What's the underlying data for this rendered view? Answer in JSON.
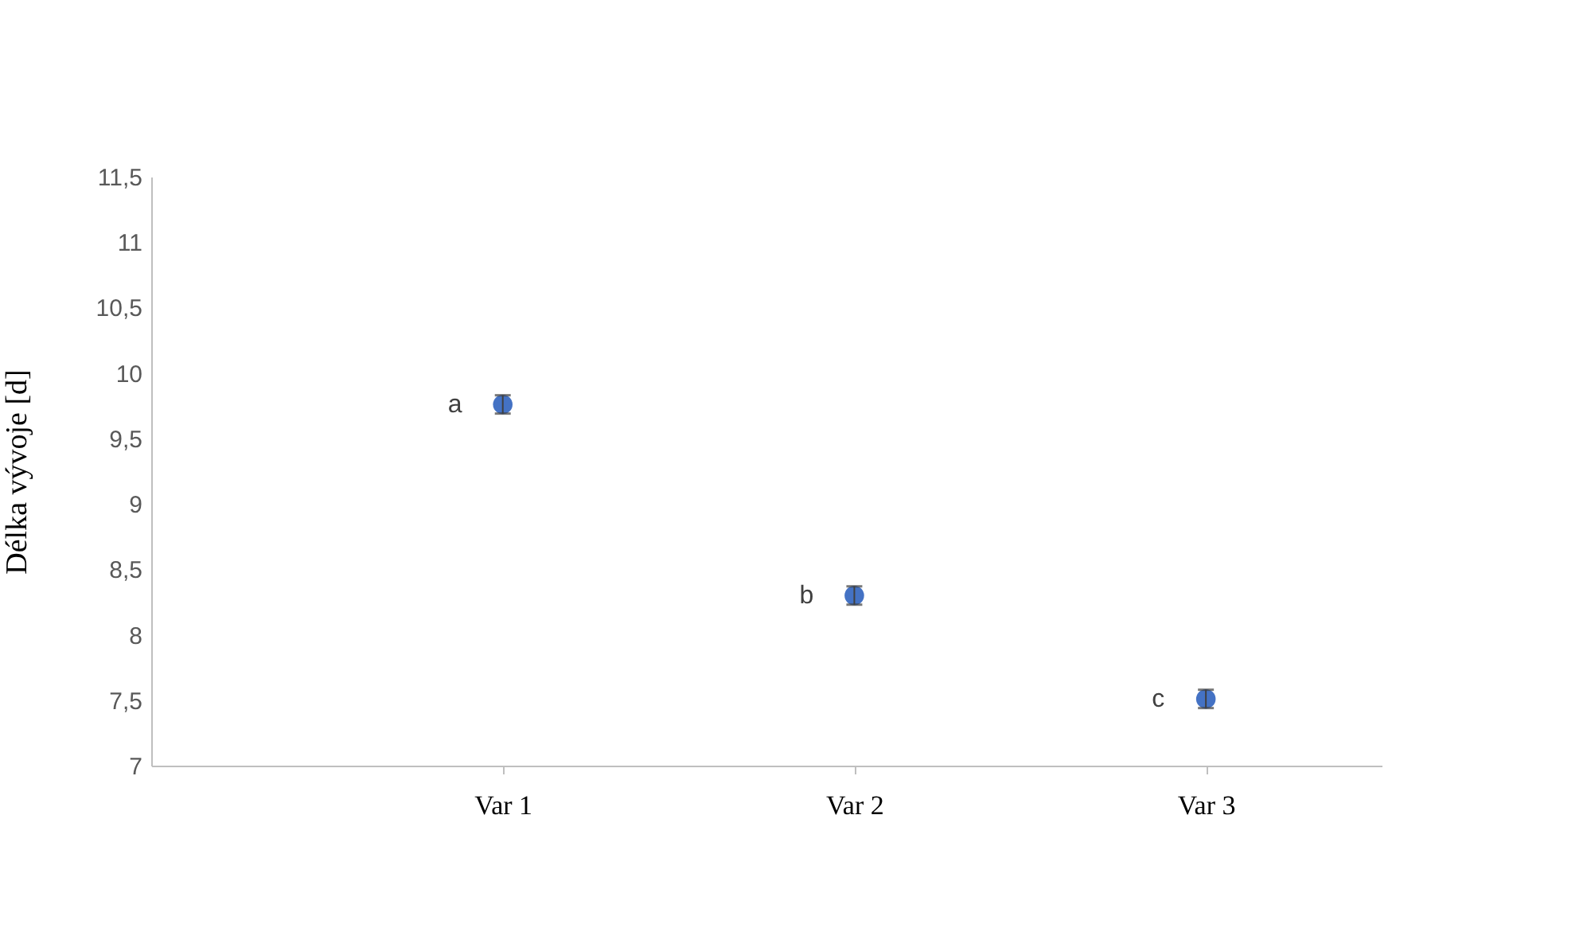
{
  "chart_data": {
    "type": "scatter",
    "ylabel": "Délka vývoje [d]",
    "categories": [
      "Var 1",
      "Var 2",
      "Var 3"
    ],
    "series": [
      {
        "color": "#4472c4",
        "values": [
          9.76,
          8.3,
          7.51
        ],
        "errors": [
          0.07,
          0.07,
          0.07
        ]
      }
    ],
    "ylim": [
      7,
      11.5
    ],
    "yticks": [
      7,
      {
        "value": 7.5,
        "label": "7,5"
      },
      8,
      {
        "value": 8.5,
        "label": "8,5"
      },
      9,
      {
        "value": 9.5,
        "label": "9,5"
      },
      10,
      {
        "value": 10.5,
        "label": "10,5"
      },
      11,
      {
        "value": 11.5,
        "label": "11,5"
      }
    ],
    "annotations": [
      {
        "text": "a",
        "x": "Var 1",
        "y": 9.76
      },
      {
        "text": "b",
        "x": "Var 2",
        "y": 8.3
      },
      {
        "text": "c",
        "x": "Var 3",
        "y": 7.51
      }
    ],
    "grid": false,
    "legend": false,
    "marker": "circle"
  }
}
